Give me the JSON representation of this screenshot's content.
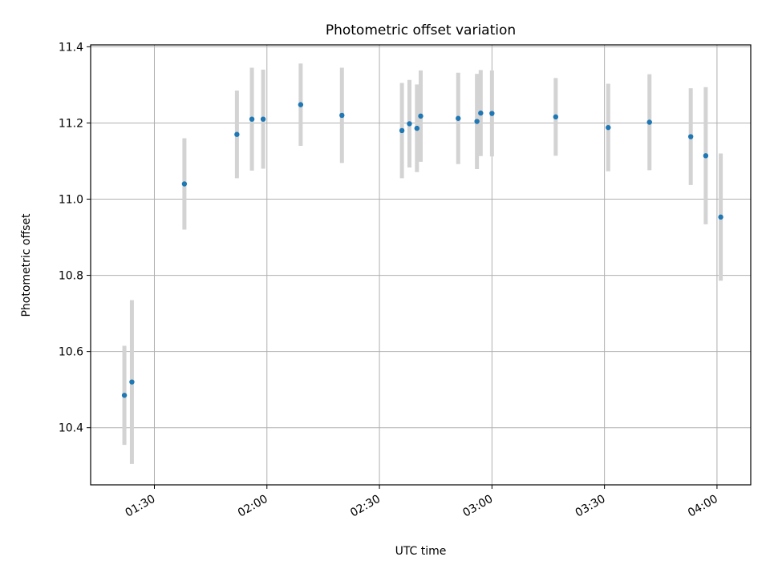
{
  "chart_data": {
    "type": "scatter",
    "title": "Photometric offset variation",
    "xlabel": "UTC time",
    "ylabel": "Photometric offset",
    "x_range": [
      "01:13",
      "04:09"
    ],
    "ylim": [
      10.25,
      11.405
    ],
    "grid": true,
    "x_ticks": [
      "01:30",
      "02:00",
      "02:30",
      "03:00",
      "03:30",
      "04:00"
    ],
    "y_ticks": [
      10.4,
      10.6,
      10.8,
      11.0,
      11.2,
      11.4
    ],
    "y_tick_labels": [
      "10.4",
      "10.6",
      "10.8",
      "11.0",
      "11.2",
      "11.4"
    ],
    "colors": {
      "point": "#1f77b4",
      "errorbar": "#d3d3d3",
      "grid": "#b0b0b0"
    },
    "series": [
      {
        "points": [
          {
            "x": "01:22",
            "y": 10.485,
            "err": 0.13
          },
          {
            "x": "01:24",
            "y": 10.52,
            "err": 0.215
          },
          {
            "x": "01:38",
            "y": 11.04,
            "err": 0.12
          },
          {
            "x": "01:52",
            "y": 11.17,
            "err": 0.115
          },
          {
            "x": "01:56",
            "y": 11.21,
            "err": 0.135
          },
          {
            "x": "01:59",
            "y": 11.21,
            "err": 0.13
          },
          {
            "x": "02:09",
            "y": 11.248,
            "err": 0.108
          },
          {
            "x": "02:20",
            "y": 11.22,
            "err": 0.125
          },
          {
            "x": "02:36",
            "y": 11.18,
            "err": 0.125
          },
          {
            "x": "02:38",
            "y": 11.198,
            "err": 0.115
          },
          {
            "x": "02:40",
            "y": 11.186,
            "err": 0.115
          },
          {
            "x": "02:41",
            "y": 11.218,
            "err": 0.12
          },
          {
            "x": "02:51",
            "y": 11.212,
            "err": 0.12
          },
          {
            "x": "02:56",
            "y": 11.204,
            "err": 0.125
          },
          {
            "x": "02:57",
            "y": 11.226,
            "err": 0.113
          },
          {
            "x": "03:00",
            "y": 11.225,
            "err": 0.113
          },
          {
            "x": "03:17",
            "y": 11.216,
            "err": 0.102
          },
          {
            "x": "03:31",
            "y": 11.188,
            "err": 0.115
          },
          {
            "x": "03:42",
            "y": 11.202,
            "err": 0.126
          },
          {
            "x": "03:53",
            "y": 11.164,
            "err": 0.127
          },
          {
            "x": "03:57",
            "y": 11.114,
            "err": 0.18
          },
          {
            "x": "04:01",
            "y": 10.953,
            "err": 0.167
          }
        ]
      }
    ]
  }
}
